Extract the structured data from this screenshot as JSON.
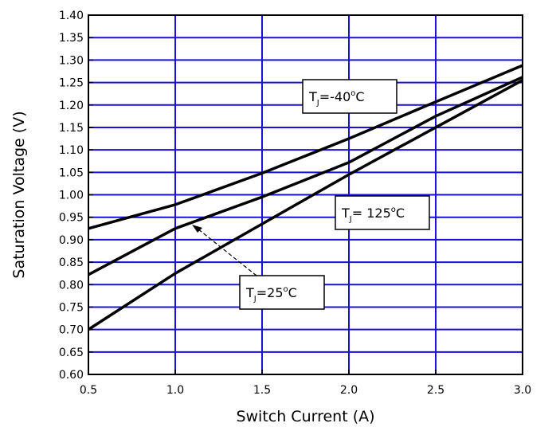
{
  "chart_data": {
    "type": "line",
    "xlabel": "Switch Current (A)",
    "ylabel": "Saturation Voltage (V)",
    "xlim": [
      0.5,
      3.0
    ],
    "ylim": [
      0.6,
      1.4
    ],
    "x_ticks": [
      "0.5",
      "1.0",
      "1.5",
      "2.0",
      "2.5",
      "3.0"
    ],
    "y_ticks": [
      "0.60",
      "0.65",
      "0.70",
      "0.75",
      "0.80",
      "0.85",
      "0.90",
      "0.95",
      "1.00",
      "1.05",
      "1.10",
      "1.15",
      "1.20",
      "1.25",
      "1.30",
      "1.35",
      "1.40"
    ],
    "grid": true,
    "grid_color": "#1a10d8",
    "line_color": "#000000",
    "series": [
      {
        "annotation": {
          "prefix": "T",
          "sub": "J",
          "value": "=-40",
          "sup": "o",
          "suffix": "C"
        },
        "x": [
          0.5,
          1.0,
          1.5,
          2.0,
          2.5,
          3.0
        ],
        "y": [
          0.925,
          0.978,
          1.048,
          1.125,
          1.207,
          1.288
        ]
      },
      {
        "annotation": {
          "prefix": "T",
          "sub": "J",
          "value": "=25",
          "sup": "o",
          "suffix": "C"
        },
        "x": [
          0.5,
          1.0,
          1.5,
          2.0,
          2.5,
          3.0
        ],
        "y": [
          0.7,
          0.825,
          0.935,
          1.045,
          1.15,
          1.255
        ]
      },
      {
        "annotation": {
          "prefix": "T",
          "sub": "J",
          "value": "= 125",
          "sup": "o",
          "suffix": "C"
        },
        "x": [
          0.5,
          1.0,
          1.5,
          2.0,
          2.5,
          3.0
        ],
        "y": [
          0.822,
          0.925,
          0.995,
          1.072,
          1.175,
          1.262
        ]
      }
    ]
  }
}
